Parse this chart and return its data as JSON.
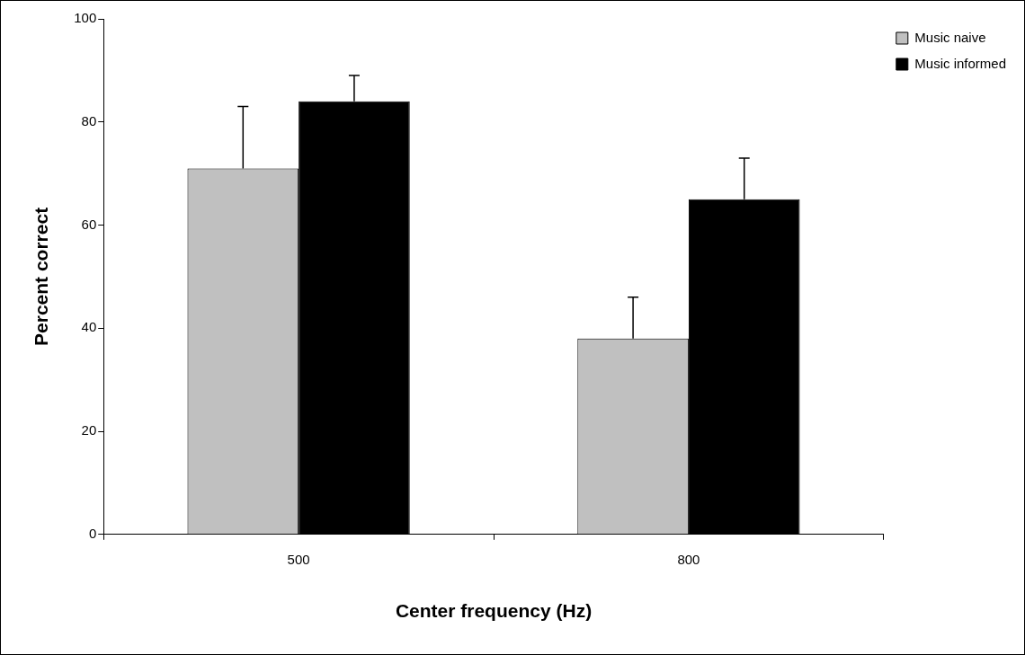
{
  "chart_data": {
    "type": "bar",
    "xlabel": "Center frequency (Hz)",
    "ylabel": "Percent correct",
    "categories": [
      "500",
      "800"
    ],
    "series": [
      {
        "name": "Music naive",
        "color": "#c0c0c0",
        "values": [
          71,
          38
        ],
        "errors": [
          [
            71,
            83
          ],
          [
            38,
            46
          ]
        ]
      },
      {
        "name": "Music informed",
        "color": "#000000",
        "values": [
          84,
          65
        ],
        "errors": [
          [
            84,
            89
          ],
          [
            65,
            73
          ]
        ]
      }
    ],
    "ylim": [
      0,
      100
    ],
    "yticks": [
      0,
      20,
      40,
      60,
      80,
      100
    ],
    "grid": false,
    "legend": "top right"
  }
}
